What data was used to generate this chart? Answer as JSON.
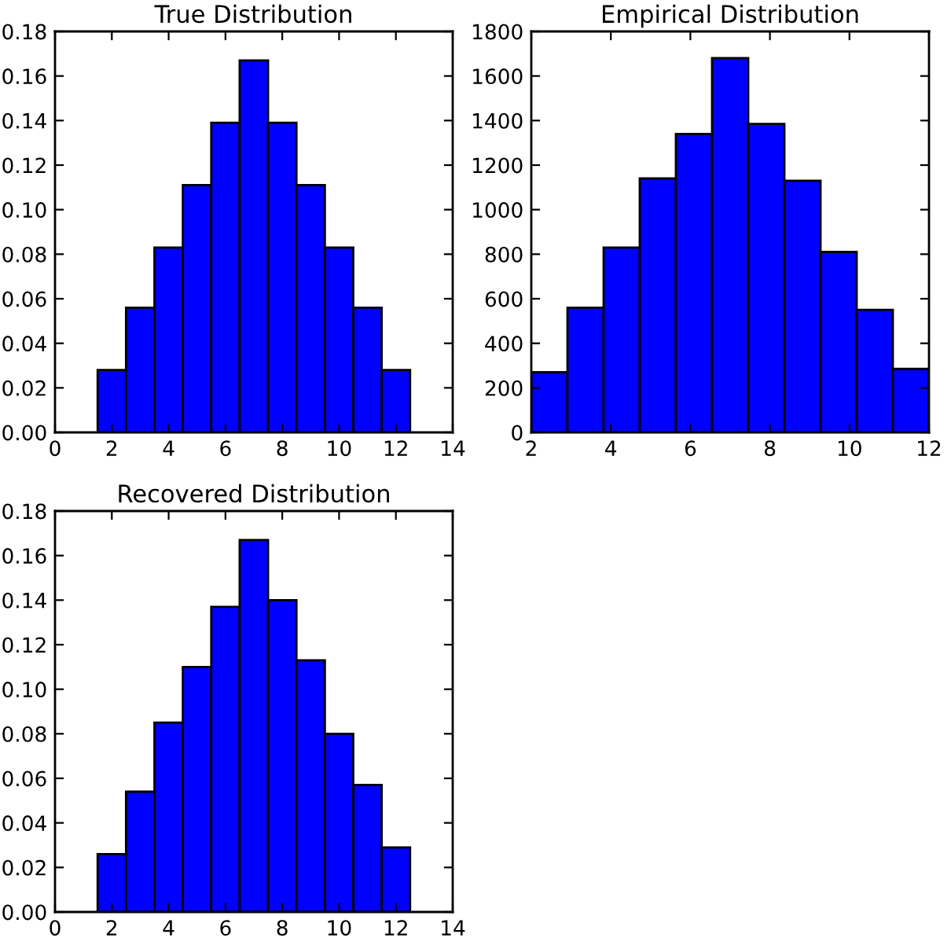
{
  "chart_data": [
    {
      "type": "histogram",
      "title": "True Distribution",
      "bins": [
        1.5,
        2.5,
        3.5,
        4.5,
        5.5,
        6.5,
        7.5,
        8.5,
        9.5,
        10.5,
        11.5,
        12.5
      ],
      "values": [
        0.028,
        0.056,
        0.083,
        0.111,
        0.139,
        0.167,
        0.139,
        0.111,
        0.083,
        0.056,
        0.028
      ],
      "color": "#0000ff",
      "xlim": [
        0,
        14
      ],
      "xticks": [
        0,
        2,
        4,
        6,
        8,
        10,
        12,
        14
      ],
      "ylim": [
        0,
        0.18
      ],
      "yticks": [
        {
          "value": 0,
          "label": "0.00"
        },
        {
          "value": 0.02,
          "label": "0.02"
        },
        {
          "value": 0.04,
          "label": "0.04"
        },
        {
          "value": 0.06,
          "label": "0.06"
        },
        {
          "value": 0.08,
          "label": "0.08"
        },
        {
          "value": 0.1,
          "label": "0.10"
        },
        {
          "value": 0.12,
          "label": "0.12"
        },
        {
          "value": 0.14,
          "label": "0.14"
        },
        {
          "value": 0.16,
          "label": "0.16"
        },
        {
          "value": 0.18,
          "label": "0.18"
        }
      ],
      "grid": false
    },
    {
      "type": "histogram",
      "title": "Empirical Distribution",
      "bins": [
        2,
        2.909,
        3.818,
        4.727,
        5.636,
        6.545,
        7.455,
        8.364,
        9.273,
        10.182,
        11.091,
        12
      ],
      "values": [
        270,
        560,
        830,
        1140,
        1340,
        1680,
        1385,
        1130,
        810,
        550,
        285
      ],
      "color": "#0000ff",
      "xlim": [
        2,
        12
      ],
      "xticks": [
        2,
        4,
        6,
        8,
        10,
        12
      ],
      "ylim": [
        0,
        1800
      ],
      "yticks": [
        0,
        200,
        400,
        600,
        800,
        1000,
        1200,
        1400,
        1600,
        1800
      ],
      "grid": false
    },
    {
      "type": "histogram",
      "title": "Recovered Distribution",
      "bins": [
        1.5,
        2.5,
        3.5,
        4.5,
        5.5,
        6.5,
        7.5,
        8.5,
        9.5,
        10.5,
        11.5,
        12.5
      ],
      "values": [
        0.026,
        0.054,
        0.085,
        0.11,
        0.137,
        0.167,
        0.14,
        0.113,
        0.08,
        0.057,
        0.029
      ],
      "color": "#0000ff",
      "xlim": [
        0,
        14
      ],
      "xticks": [
        0,
        2,
        4,
        6,
        8,
        10,
        12,
        14
      ],
      "ylim": [
        0,
        0.18
      ],
      "yticks": [
        {
          "value": 0,
          "label": "0.00"
        },
        {
          "value": 0.02,
          "label": "0.02"
        },
        {
          "value": 0.04,
          "label": "0.04"
        },
        {
          "value": 0.06,
          "label": "0.06"
        },
        {
          "value": 0.08,
          "label": "0.08"
        },
        {
          "value": 0.1,
          "label": "0.10"
        },
        {
          "value": 0.12,
          "label": "0.12"
        },
        {
          "value": 0.14,
          "label": "0.14"
        },
        {
          "value": 0.16,
          "label": "0.16"
        },
        {
          "value": 0.18,
          "label": "0.18"
        }
      ],
      "grid": false
    }
  ]
}
